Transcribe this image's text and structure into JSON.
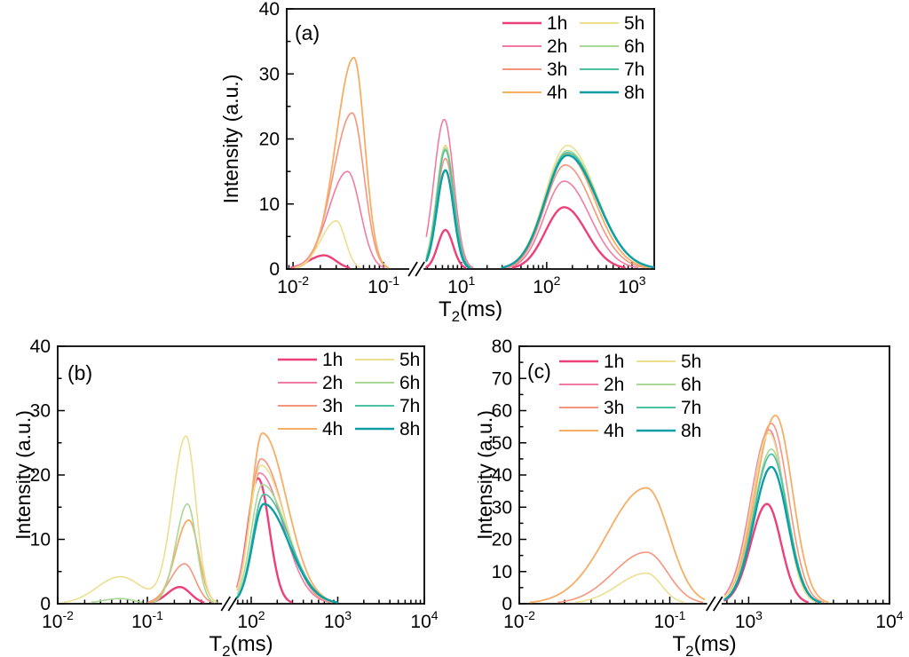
{
  "figure": {
    "background": "#ffffff",
    "ylabel": "Intensity (a.u.)",
    "xlabel_main": "T",
    "xlabel_sub": "2",
    "xlabel_unit": "(ms)"
  },
  "series_style": {
    "1h": {
      "color": "#ec4078",
      "width": 2.4
    },
    "2h": {
      "color": "#f07ca3",
      "width": 1.6
    },
    "3h": {
      "color": "#f6957d",
      "width": 1.6
    },
    "4h": {
      "color": "#f8ad64",
      "width": 1.8
    },
    "5h": {
      "color": "#ecdf90",
      "width": 1.6
    },
    "6h": {
      "color": "#a9d795",
      "width": 1.6
    },
    "7h": {
      "color": "#4ec0a3",
      "width": 1.7
    },
    "8h": {
      "color": "#0e9ea6",
      "width": 2.4
    }
  },
  "chart_data": [
    {
      "id": "a",
      "type": "line",
      "panel_label": "(a)",
      "title": "",
      "xlabel": "T2(ms)",
      "ylabel": "Intensity (a.u.)",
      "xscale": "log-broken",
      "grid": false,
      "legend_position": "top-right",
      "legend_entries": [
        "1h",
        "2h",
        "3h",
        "4h",
        "5h",
        "6h",
        "7h",
        "8h"
      ],
      "ylim": [
        0,
        40
      ],
      "ytick_step": 10,
      "x_break_f": 0.353,
      "x_segments": [
        {
          "log_min": -2.07,
          "log_max": -0.73,
          "f_min": 0.0,
          "f_max": 0.33
        },
        {
          "log_min": 0.59,
          "log_max": 3.26,
          "f_min": 0.38,
          "f_max": 1.0
        }
      ],
      "x_tick_exps": [
        [
          -2,
          0
        ],
        [
          -1,
          0
        ],
        [
          1,
          1
        ],
        [
          2,
          1
        ],
        [
          3,
          1
        ]
      ],
      "series": [
        {
          "name": "1h",
          "peaks": [
            {
              "c": 0.022,
              "h": 2.1,
              "sl": 0.17,
              "sr": 0.13
            },
            {
              "c": 6.5,
              "h": 6.0,
              "sl": 0.09,
              "sr": 0.09
            },
            {
              "c": 160,
              "h": 9.5,
              "sl": 0.22,
              "sr": 0.26
            }
          ]
        },
        {
          "name": "2h",
          "peaks": [
            {
              "c": 0.04,
              "h": 15.0,
              "sl": 0.21,
              "sr": 0.14
            },
            {
              "c": 6.3,
              "h": 23.0,
              "sl": 0.12,
              "sr": 0.11
            },
            {
              "c": 160,
              "h": 13.5,
              "sl": 0.23,
              "sr": 0.3
            }
          ]
        },
        {
          "name": "3h",
          "peaks": [
            {
              "c": 0.045,
              "h": 24.0,
              "sl": 0.21,
              "sr": 0.13
            },
            {
              "c": 6.5,
              "h": 17.0,
              "sl": 0.1,
              "sr": 0.1
            },
            {
              "c": 165,
              "h": 16.0,
              "sl": 0.24,
              "sr": 0.32
            }
          ]
        },
        {
          "name": "4h",
          "peaks": [
            {
              "c": 0.047,
              "h": 32.5,
              "sl": 0.2,
              "sr": 0.12
            },
            {
              "c": 6.5,
              "h": 19.0,
              "sl": 0.1,
              "sr": 0.1
            },
            {
              "c": 170,
              "h": 17.7,
              "sl": 0.25,
              "sr": 0.33
            }
          ]
        },
        {
          "name": "5h",
          "peaks": [
            {
              "c": 0.03,
              "h": 7.4,
              "sl": 0.17,
              "sr": 0.1
            },
            {
              "c": 6.5,
              "h": 19.0,
              "sl": 0.105,
              "sr": 0.1
            },
            {
              "c": 175,
              "h": 19.0,
              "sl": 0.26,
              "sr": 0.34
            }
          ]
        },
        {
          "name": "6h",
          "peaks": [
            {
              "c": 6.5,
              "h": 18.6,
              "sl": 0.105,
              "sr": 0.1
            },
            {
              "c": 175,
              "h": 18.2,
              "sl": 0.26,
              "sr": 0.35
            }
          ]
        },
        {
          "name": "7h",
          "peaks": [
            {
              "c": 6.5,
              "h": 18.3,
              "sl": 0.1,
              "sr": 0.1
            },
            {
              "c": 175,
              "h": 17.9,
              "sl": 0.26,
              "sr": 0.35
            }
          ]
        },
        {
          "name": "8h",
          "peaks": [
            {
              "c": 6.5,
              "h": 15.2,
              "sl": 0.1,
              "sr": 0.095
            },
            {
              "c": 175,
              "h": 17.5,
              "sl": 0.26,
              "sr": 0.35
            }
          ]
        }
      ]
    },
    {
      "id": "b",
      "type": "line",
      "panel_label": "(b)",
      "title": "",
      "xlabel": "T2(ms)",
      "ylabel": "Intensity (a.u.)",
      "xscale": "log-broken",
      "grid": false,
      "legend_position": "top-right",
      "legend_entries": [
        "1h",
        "2h",
        "3h",
        "4h",
        "5h",
        "6h",
        "7h",
        "8h"
      ],
      "ylim": [
        0,
        40
      ],
      "ytick_step": 10,
      "x_break_f": 0.468,
      "x_segments": [
        {
          "log_min": -2.0,
          "log_max": -0.16,
          "f_min": 0.0,
          "f_max": 0.45
        },
        {
          "log_min": 1.84,
          "log_max": 4.0,
          "f_min": 0.49,
          "f_max": 1.0
        }
      ],
      "x_tick_exps": [
        [
          -2,
          0
        ],
        [
          -1,
          0
        ],
        [
          2,
          1
        ],
        [
          3,
          1
        ],
        [
          4,
          1
        ]
      ],
      "series": [
        {
          "name": "1h",
          "peaks": [
            {
              "c": 0.23,
              "h": 2.6,
              "sl": 0.14,
              "sr": 0.12
            },
            {
              "c": 120,
              "h": 19.5,
              "sl": 0.12,
              "sr": 0.13
            }
          ]
        },
        {
          "name": "2h",
          "peaks": [
            {
              "c": 125,
              "h": 20.3,
              "sl": 0.13,
              "sr": 0.27
            }
          ]
        },
        {
          "name": "3h",
          "peaks": [
            {
              "c": 0.26,
              "h": 6.2,
              "sl": 0.16,
              "sr": 0.12
            },
            {
              "c": 130,
              "h": 22.5,
              "sl": 0.13,
              "sr": 0.27
            }
          ]
        },
        {
          "name": "4h",
          "peaks": [
            {
              "c": 0.29,
              "h": 13.0,
              "sl": 0.15,
              "sr": 0.11
            },
            {
              "c": 135,
              "h": 26.5,
              "sl": 0.13,
              "sr": 0.28
            }
          ]
        },
        {
          "name": "5h",
          "peaks": [
            {
              "c": 0.05,
              "h": 4.2,
              "sl": 0.26,
              "sr": 0.24
            },
            {
              "c": 0.27,
              "h": 26.0,
              "sl": 0.15,
              "sr": 0.11
            },
            {
              "c": 130,
              "h": 21.5,
              "sl": 0.13,
              "sr": 0.28
            }
          ]
        },
        {
          "name": "6h",
          "peaks": [
            {
              "c": 0.05,
              "h": 0.8,
              "sl": 0.2,
              "sr": 0.15
            },
            {
              "c": 0.28,
              "h": 15.5,
              "sl": 0.13,
              "sr": 0.1
            },
            {
              "c": 135,
              "h": 18.5,
              "sl": 0.13,
              "sr": 0.29
            }
          ]
        },
        {
          "name": "7h",
          "peaks": [
            {
              "c": 140,
              "h": 17.0,
              "sl": 0.13,
              "sr": 0.29
            }
          ]
        },
        {
          "name": "8h",
          "peaks": [
            {
              "c": 140,
              "h": 15.5,
              "sl": 0.13,
              "sr": 0.29
            }
          ]
        }
      ]
    },
    {
      "id": "c",
      "type": "line",
      "panel_label": "(c)",
      "title": "",
      "xlabel": "T2(ms)",
      "ylabel": "Intensity (a.u.)",
      "xscale": "log-broken",
      "grid": false,
      "legend_position": "top-left",
      "legend_entries": [
        "1h",
        "2h",
        "3h",
        "4h",
        "5h",
        "6h",
        "7h",
        "8h"
      ],
      "ylim": [
        0,
        80
      ],
      "ytick_step": 10,
      "x_break_f": 0.527,
      "x_segments": [
        {
          "log_min": -2.0,
          "log_max": -0.77,
          "f_min": 0.0,
          "f_max": 0.5
        },
        {
          "log_min": 2.83,
          "log_max": 4.0,
          "f_min": 0.555,
          "f_max": 1.0
        }
      ],
      "x_tick_exps": [
        [
          -2,
          0
        ],
        [
          -1,
          0
        ],
        [
          3,
          1
        ],
        [
          4,
          1
        ]
      ],
      "series": [
        {
          "name": "1h",
          "peaks": [
            {
              "c": 1350,
              "h": 31.0,
              "sl": 0.115,
              "sr": 0.1
            }
          ]
        },
        {
          "name": "2h",
          "peaks": [
            {
              "c": 1400,
              "h": 54.0,
              "sl": 0.13,
              "sr": 0.11
            }
          ]
        },
        {
          "name": "3h",
          "peaks": [
            {
              "c": 0.07,
              "h": 16.0,
              "sl": 0.22,
              "sr": 0.14
            },
            {
              "c": 1450,
              "h": 56.0,
              "sl": 0.13,
              "sr": 0.12
            }
          ]
        },
        {
          "name": "4h",
          "peaks": [
            {
              "c": 0.07,
              "h": 36.0,
              "sl": 0.26,
              "sr": 0.15
            },
            {
              "c": 1550,
              "h": 58.5,
              "sl": 0.14,
              "sr": 0.12
            }
          ]
        },
        {
          "name": "5h",
          "peaks": [
            {
              "c": 0.07,
              "h": 9.5,
              "sl": 0.19,
              "sr": 0.1
            },
            {
              "c": 1400,
              "h": 53.0,
              "sl": 0.125,
              "sr": 0.11
            }
          ]
        },
        {
          "name": "6h",
          "peaks": [
            {
              "c": 1450,
              "h": 48.0,
              "sl": 0.125,
              "sr": 0.115
            }
          ]
        },
        {
          "name": "7h",
          "peaks": [
            {
              "c": 1450,
              "h": 46.5,
              "sl": 0.125,
              "sr": 0.115
            }
          ]
        },
        {
          "name": "8h",
          "peaks": [
            {
              "c": 1450,
              "h": 42.5,
              "sl": 0.125,
              "sr": 0.115
            }
          ]
        }
      ]
    }
  ]
}
